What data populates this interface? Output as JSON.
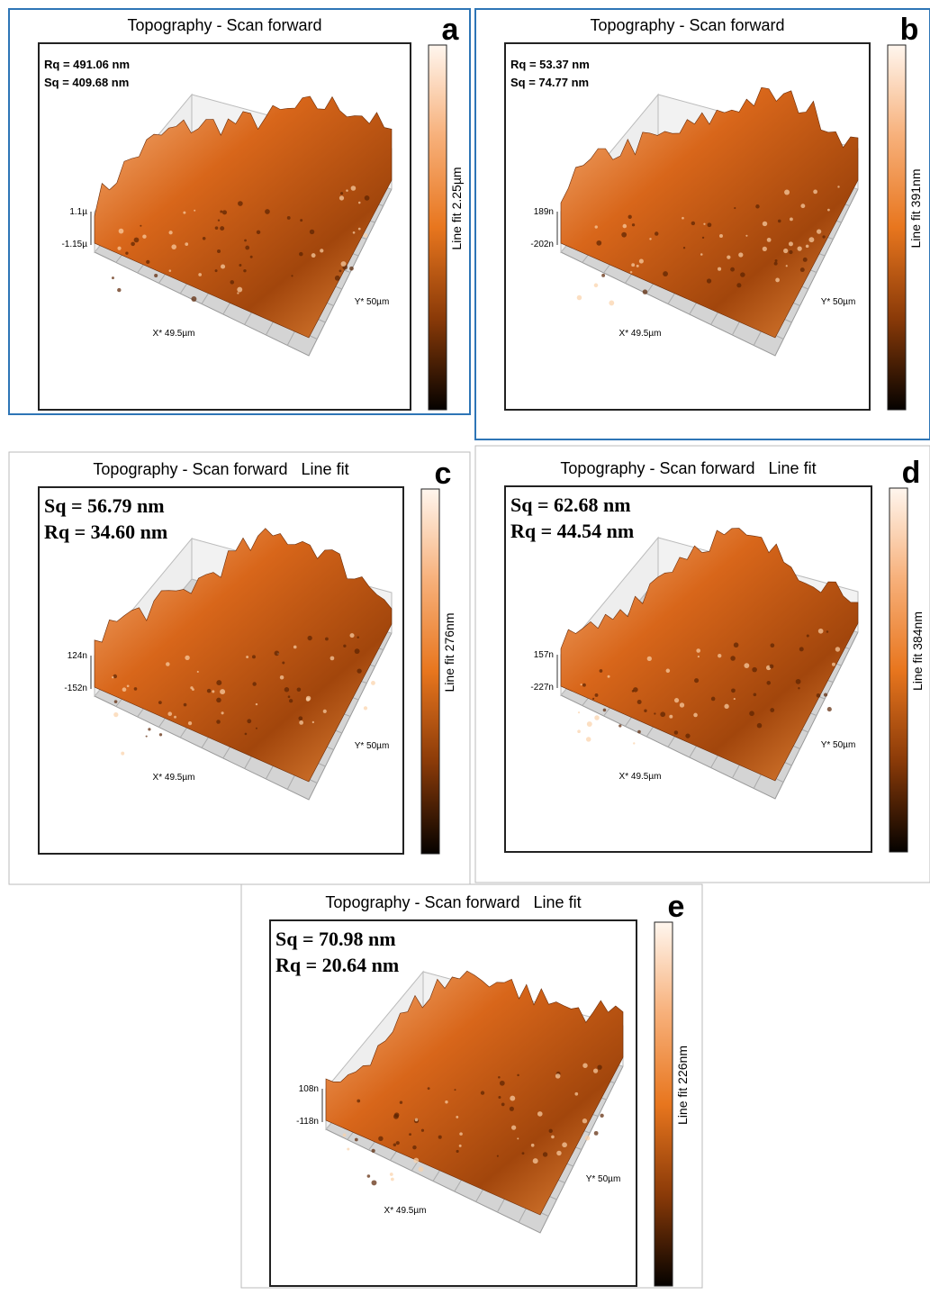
{
  "panels": [
    {
      "letter": "a",
      "title": "Topography - Scan forward",
      "stats": [
        "Rq = 491.06 nm",
        "Sq = 409.68 nm"
      ],
      "z_top": "1.1µ",
      "z_bottom": "-1.15µ",
      "x_label": "X* 49.5µm",
      "y_label": "Y* 50µm",
      "colorbar_label": "Line fit 2.25µm"
    },
    {
      "letter": "b",
      "title": "Topography - Scan forward",
      "stats": [
        "Rq = 53.37 nm",
        "Sq = 74.77 nm"
      ],
      "z_top": "189n",
      "z_bottom": "-202n",
      "x_label": "X* 49.5µm",
      "y_label": "Y* 50µm",
      "colorbar_label": "Line fit 391nm"
    },
    {
      "letter": "c",
      "title": "Topography - Scan forward   Line fit",
      "stats": [
        "Sq = 56.79 nm",
        "Rq = 34.60 nm"
      ],
      "z_top": "124n",
      "z_bottom": "-152n",
      "x_label": "X* 49.5µm",
      "y_label": "Y* 50µm",
      "colorbar_label": "Line fit 276nm"
    },
    {
      "letter": "d",
      "title": "Topography - Scan forward   Line fit",
      "stats": [
        "Sq = 62.68 nm",
        "Rq = 44.54 nm"
      ],
      "z_top": "157n",
      "z_bottom": "-227n",
      "x_label": "X* 49.5µm",
      "y_label": "Y* 50µm",
      "colorbar_label": "Line fit 384nm"
    },
    {
      "letter": "e",
      "title": "Topography - Scan forward   Line fit",
      "stats": [
        "Sq = 70.98 nm",
        "Rq = 20.64 nm"
      ],
      "z_top": "108n",
      "z_bottom": "-118n",
      "x_label": "X* 49.5µm",
      "y_label": "Y* 50µm",
      "colorbar_label": "Line fit 226nm"
    }
  ]
}
